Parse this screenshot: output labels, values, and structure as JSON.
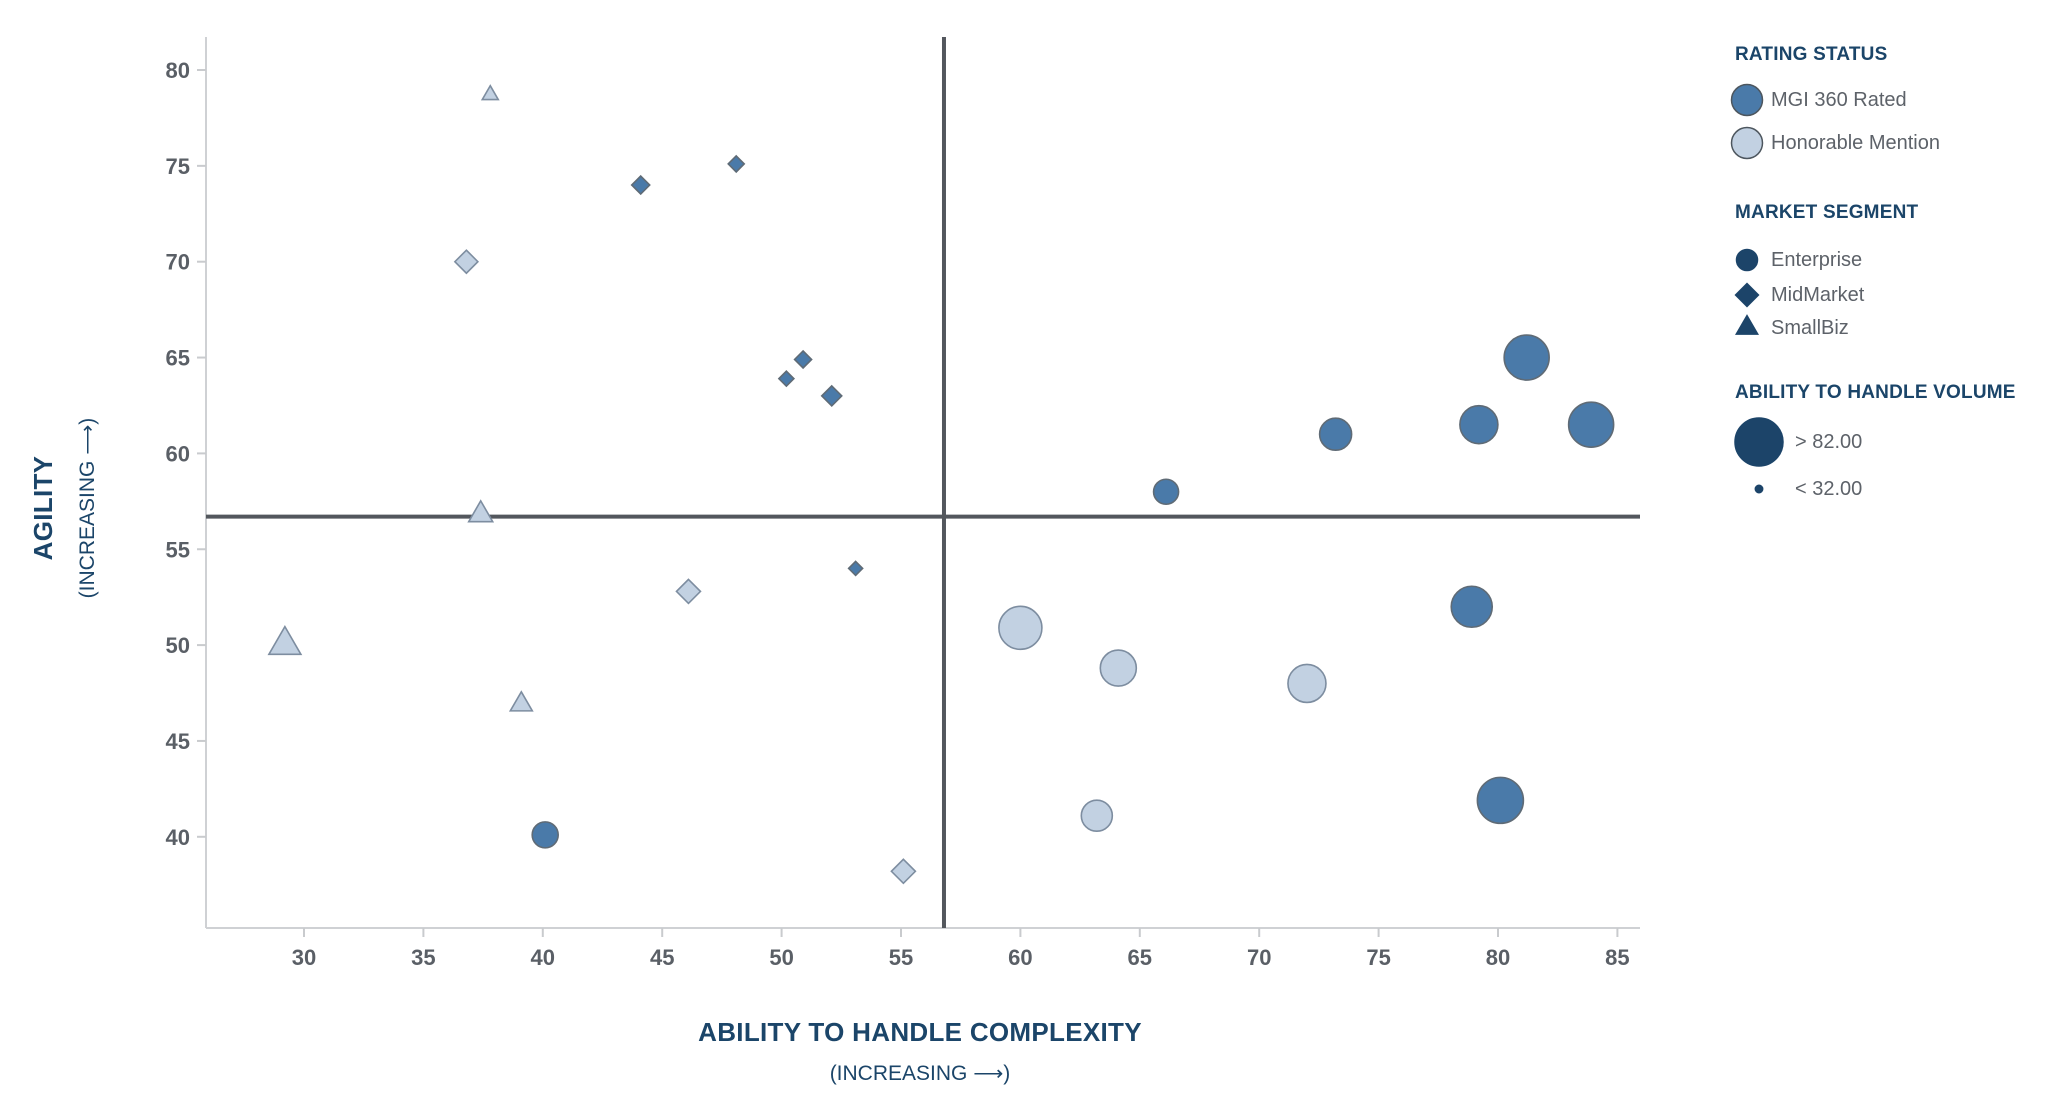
{
  "colors": {
    "rated_fill": "#4a7aa9",
    "rated_stroke": "#5f6b76",
    "honorable_fill": "#c2d1e2",
    "honorable_stroke": "#7d8da0",
    "navy": "#1c4469",
    "quadrant_line": "#53575d",
    "axis_line": "#cfd1d4",
    "tick_mark": "#c9cbce",
    "tick_text": "#5a5f66",
    "title_text": "#1b4569",
    "legend_text": "#5d6269"
  },
  "chart_data": {
    "type": "scatter",
    "title": "",
    "xlabel": "ABILITY TO HANDLE COMPLEXITY",
    "xlabel_sub": "(INCREASING ⟶)",
    "ylabel": "AGILITY",
    "ylabel_sub": "(INCREASING ⟶)",
    "x_ticks": [
      30,
      35,
      40,
      45,
      50,
      55,
      60,
      65,
      70,
      75,
      80,
      85
    ],
    "y_ticks": [
      40,
      45,
      50,
      55,
      60,
      65,
      70,
      75,
      80
    ],
    "xlim": [
      25.9,
      86.0
    ],
    "ylim": [
      35.2,
      81.9
    ],
    "grid": false,
    "quadrant_x": 56.8,
    "quadrant_y": 56.7,
    "size_legend": {
      "max_label": "> 82.00",
      "min_label": "< 32.00"
    },
    "points": [
      {
        "x": 37.8,
        "y": 78.7,
        "r": 8,
        "rating": "Honorable Mention",
        "segment": "SmallBiz"
      },
      {
        "x": 48.1,
        "y": 75.1,
        "r": 8,
        "rating": "MGI 360 Rated",
        "segment": "MidMarket"
      },
      {
        "x": 44.1,
        "y": 74.0,
        "r": 9,
        "rating": "MGI 360 Rated",
        "segment": "MidMarket"
      },
      {
        "x": 36.8,
        "y": 70.0,
        "r": 11.5,
        "rating": "Honorable Mention",
        "segment": "MidMarket"
      },
      {
        "x": 50.9,
        "y": 64.9,
        "r": 8.5,
        "rating": "MGI 360 Rated",
        "segment": "MidMarket"
      },
      {
        "x": 50.2,
        "y": 63.9,
        "r": 7.5,
        "rating": "MGI 360 Rated",
        "segment": "MidMarket"
      },
      {
        "x": 52.1,
        "y": 63.0,
        "r": 10,
        "rating": "MGI 360 Rated",
        "segment": "MidMarket"
      },
      {
        "x": 37.4,
        "y": 56.8,
        "r": 12,
        "rating": "Honorable Mention",
        "segment": "SmallBiz"
      },
      {
        "x": 53.1,
        "y": 54.0,
        "r": 7,
        "rating": "MGI 360 Rated",
        "segment": "MidMarket"
      },
      {
        "x": 46.1,
        "y": 52.8,
        "r": 12,
        "rating": "Honorable Mention",
        "segment": "MidMarket"
      },
      {
        "x": 29.2,
        "y": 50.0,
        "r": 16,
        "rating": "Honorable Mention",
        "segment": "SmallBiz"
      },
      {
        "x": 39.1,
        "y": 46.9,
        "r": 11,
        "rating": "Honorable Mention",
        "segment": "SmallBiz"
      },
      {
        "x": 40.1,
        "y": 40.1,
        "r": 13,
        "rating": "MGI 360 Rated",
        "segment": "Enterprise"
      },
      {
        "x": 55.1,
        "y": 38.2,
        "r": 12,
        "rating": "Honorable Mention",
        "segment": "MidMarket"
      },
      {
        "x": 66.1,
        "y": 58.0,
        "r": 12.5,
        "rating": "MGI 360 Rated",
        "segment": "Enterprise"
      },
      {
        "x": 73.2,
        "y": 61.0,
        "r": 16,
        "rating": "MGI 360 Rated",
        "segment": "Enterprise"
      },
      {
        "x": 81.2,
        "y": 65.0,
        "r": 22.5,
        "rating": "MGI 360 Rated",
        "segment": "Enterprise"
      },
      {
        "x": 79.2,
        "y": 61.5,
        "r": 19,
        "rating": "MGI 360 Rated",
        "segment": "Enterprise"
      },
      {
        "x": 83.9,
        "y": 61.5,
        "r": 22.5,
        "rating": "MGI 360 Rated",
        "segment": "Enterprise"
      },
      {
        "x": 60.0,
        "y": 50.9,
        "r": 21.5,
        "rating": "Honorable Mention",
        "segment": "Enterprise"
      },
      {
        "x": 64.1,
        "y": 48.8,
        "r": 18,
        "rating": "Honorable Mention",
        "segment": "Enterprise"
      },
      {
        "x": 72.0,
        "y": 48.0,
        "r": 19,
        "rating": "Honorable Mention",
        "segment": "Enterprise"
      },
      {
        "x": 63.2,
        "y": 41.1,
        "r": 15.5,
        "rating": "Honorable Mention",
        "segment": "Enterprise"
      },
      {
        "x": 78.9,
        "y": 52.0,
        "r": 20.5,
        "rating": "MGI 360 Rated",
        "segment": "Enterprise"
      },
      {
        "x": 80.1,
        "y": 41.9,
        "r": 23,
        "rating": "MGI 360 Rated",
        "segment": "Enterprise"
      }
    ]
  },
  "legend": {
    "rating": {
      "title": "RATING STATUS",
      "items": [
        {
          "label": "MGI 360 Rated",
          "swatch": "rated"
        },
        {
          "label": "Honorable Mention",
          "swatch": "honorable"
        }
      ]
    },
    "segment": {
      "title": "MARKET SEGMENT",
      "items": [
        {
          "label": "Enterprise",
          "shape": "circle"
        },
        {
          "label": "MidMarket",
          "shape": "diamond"
        },
        {
          "label": "SmallBiz",
          "shape": "triangle"
        }
      ]
    },
    "volume": {
      "title": "ABILITY TO HANDLE VOLUME",
      "items": [
        {
          "label": "> 82.00",
          "size": "large"
        },
        {
          "label": "< 32.00",
          "size": "small"
        }
      ]
    }
  }
}
